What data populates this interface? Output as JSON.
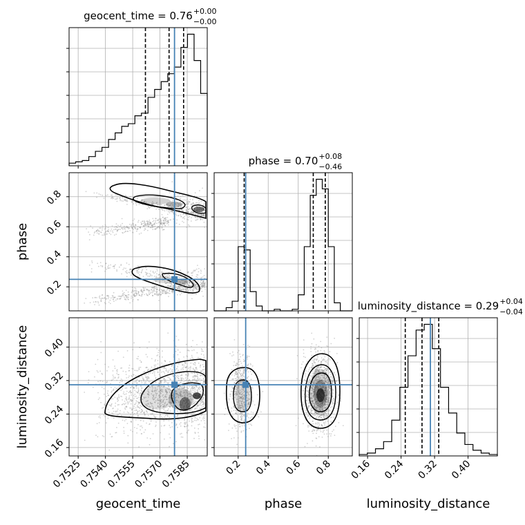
{
  "chart_data": {
    "type": "corner",
    "colors": {
      "truth": "#4682b4",
      "hist": "#000000",
      "grid": "#b0b0b0",
      "samples": "#9a9a9a"
    },
    "parameters": [
      {
        "name": "geocent_time",
        "xlabel": "geocent_time",
        "range": [
          0.752,
          0.7596
        ],
        "ticks": [
          0.7525,
          0.754,
          0.7555,
          0.757,
          0.7585
        ],
        "tick_labels": [
          "0.7525",
          "0.7540",
          "0.7555",
          "0.7570",
          "0.7585"
        ],
        "truth": 0.7578,
        "quantiles": [
          0.7562,
          0.7575,
          0.7583
        ],
        "title": {
          "main": "geocent_time = 0.76",
          "sup": "+0.00",
          "sub": "−0.00"
        },
        "hist": [
          2,
          3,
          4,
          7,
          11,
          14,
          20,
          25,
          30,
          32,
          38,
          40,
          52,
          58,
          64,
          70,
          75,
          90,
          100,
          80,
          55
        ]
      },
      {
        "name": "phase",
        "xlabel": "phase",
        "ylabel": "phase",
        "range": [
          0.04,
          0.96
        ],
        "ticks": [
          0.2,
          0.4,
          0.6,
          0.8
        ],
        "tick_labels": [
          "0.2",
          "0.4",
          "0.6",
          "0.8"
        ],
        "truth": 0.25,
        "quantiles": [
          0.24,
          0.7,
          0.78
        ],
        "title": {
          "main": "phase = 0.70",
          "sup": "+0.08",
          "sub": "−0.46"
        },
        "hist": [
          0,
          0,
          2,
          6,
          40,
          38,
          12,
          3,
          0,
          0,
          1,
          0,
          0,
          1,
          10,
          40,
          72,
          82,
          76,
          40,
          5,
          0,
          0
        ]
      },
      {
        "name": "luminosity_distance",
        "xlabel": "luminosity_distance",
        "ylabel": "luminosity_distance",
        "range": [
          0.14,
          0.47
        ],
        "ticks": [
          0.16,
          0.24,
          0.32,
          0.4
        ],
        "tick_labels": [
          "0.16",
          "0.24",
          "0.32",
          "0.40"
        ],
        "truth": 0.31,
        "quantiles": [
          0.25,
          0.29,
          0.33
        ],
        "title": {
          "main": "luminosity_distance = 0.29",
          "sup": "+0.04",
          "sub": "−0.04"
        },
        "hist": [
          1,
          2,
          5,
          10,
          25,
          48,
          70,
          88,
          92,
          75,
          48,
          30,
          16,
          8,
          4,
          2,
          1
        ]
      }
    ],
    "grid": true
  }
}
